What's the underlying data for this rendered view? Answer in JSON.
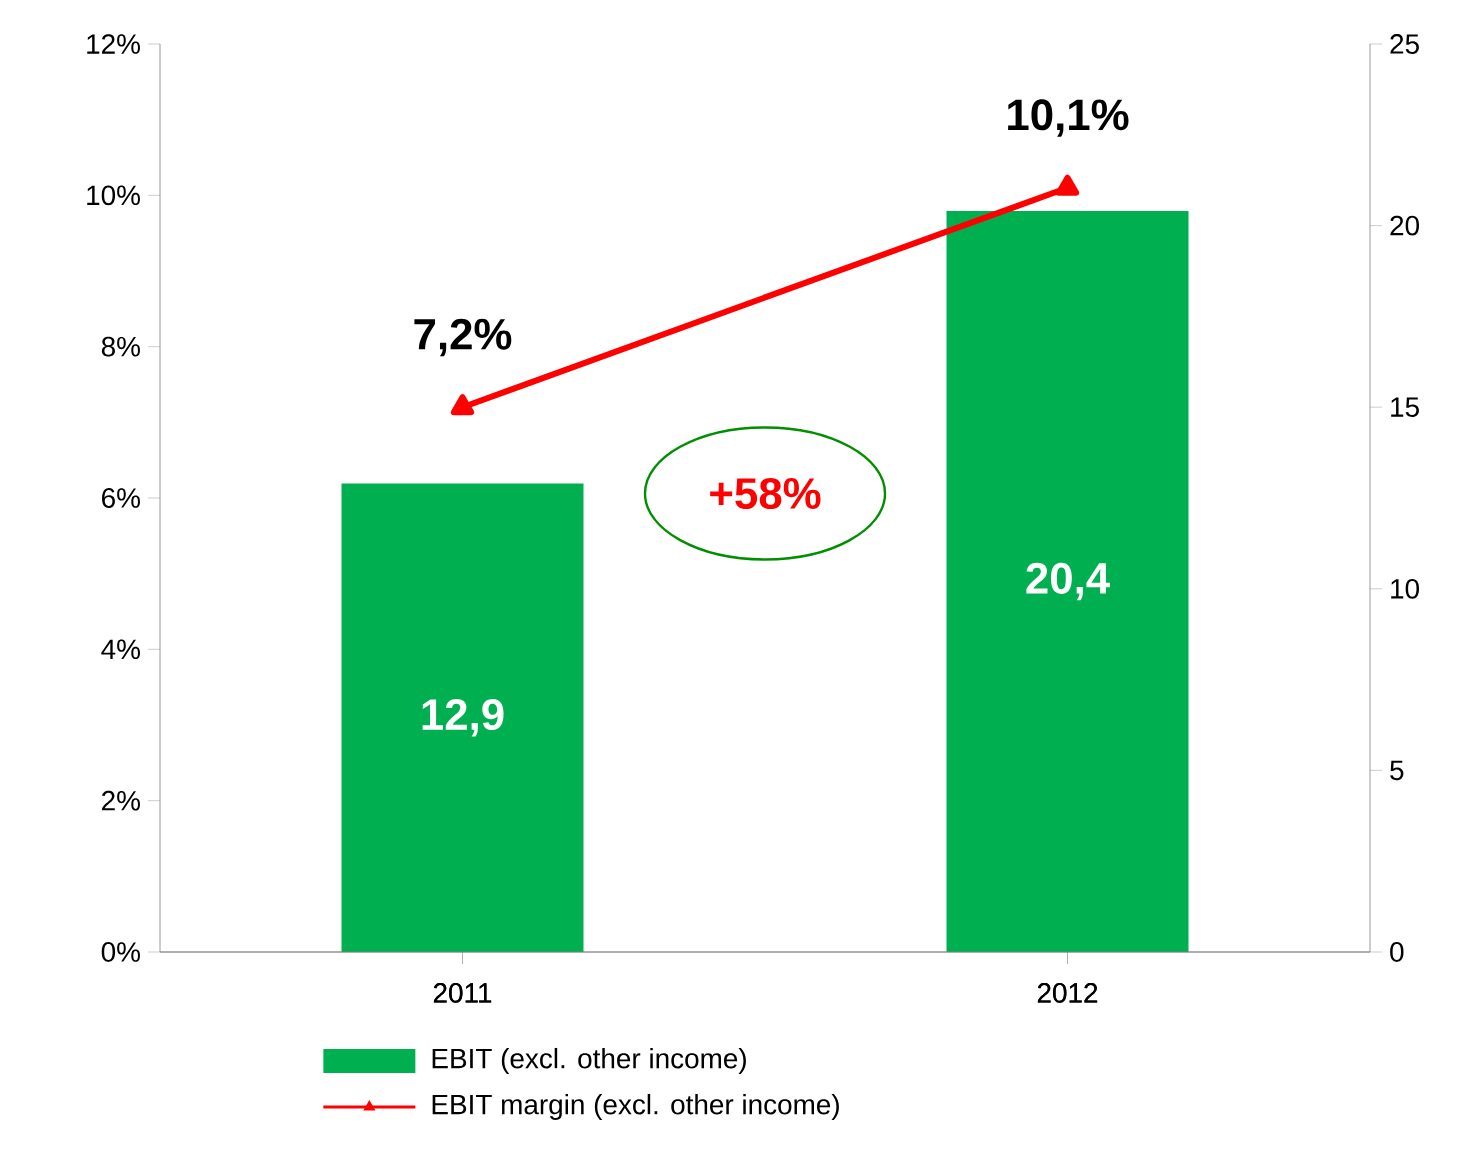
{
  "chart_data": {
    "type": "bar",
    "categories": [
      "2011",
      "2012"
    ],
    "series": [
      {
        "name": "EBIT (excl. other income)",
        "axis": "y2",
        "color": "#00b050",
        "values": [
          12.9,
          20.4
        ],
        "value_labels": [
          "12,9",
          "20,4"
        ]
      },
      {
        "name": "EBIT margin (excl. other income)",
        "type": "line",
        "axis": "y",
        "color": "#ff0000",
        "marker": "triangle",
        "values": [
          7.2,
          10.1
        ],
        "value_labels": [
          "7,2%",
          "10,1%"
        ]
      }
    ],
    "ylim": [
      0,
      12
    ],
    "yticks": [
      {
        "value": 0,
        "label": "0%"
      },
      {
        "value": 2,
        "label": "2%"
      },
      {
        "value": 4,
        "label": "4%"
      },
      {
        "value": 6,
        "label": "6%"
      },
      {
        "value": 8,
        "label": "8%"
      },
      {
        "value": 10,
        "label": "10%"
      },
      {
        "value": 12,
        "label": "12%"
      }
    ],
    "y2lim": [
      0,
      25
    ],
    "y2ticks": [
      0,
      5,
      10,
      15,
      20,
      25
    ],
    "annotations": [
      "+58%"
    ],
    "legend": "bottom",
    "grid": false
  }
}
